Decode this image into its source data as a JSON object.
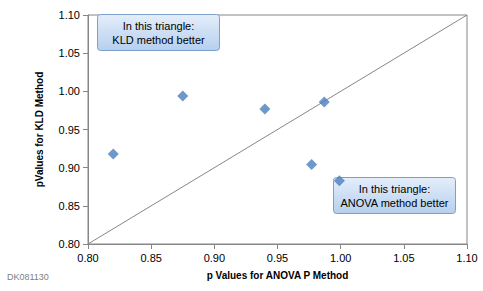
{
  "chart_data": {
    "type": "scatter",
    "x_label": "p Values for ANOVA P Method",
    "y_label": "pValues for KLD Method",
    "x": [
      0.82,
      0.875,
      0.94,
      0.977,
      0.987,
      0.999
    ],
    "values": [
      0.918,
      0.994,
      0.977,
      0.904,
      0.986,
      0.883
    ],
    "color": "#4a7ebb",
    "marker": "diamond",
    "xlim": [
      0.8,
      1.1
    ],
    "ylim": [
      0.8,
      1.1
    ],
    "xticks": [
      {
        "value": 0.8,
        "label": "0.80"
      },
      0.85,
      {
        "value": 0.9,
        "label": "0.90"
      },
      0.95,
      {
        "value": 1.0,
        "label": "1.00"
      },
      1.05,
      {
        "value": 1.1,
        "label": "1.10"
      }
    ],
    "yticks": [
      {
        "value": 0.8,
        "label": "0.80"
      },
      0.85,
      {
        "value": 0.9,
        "label": "0.90"
      },
      0.95,
      {
        "value": 1.0,
        "label": "1.00"
      },
      1.05,
      {
        "value": 1.1,
        "label": "1.10"
      }
    ],
    "grid": false,
    "diagonal": {
      "x": [
        0.8,
        1.1
      ],
      "y": [
        0.8,
        1.1
      ]
    },
    "annotations": [
      "In this triangle:\nKLD method better",
      "In this triangle:\nANOVA method better"
    ],
    "watermark": "DK081130"
  }
}
